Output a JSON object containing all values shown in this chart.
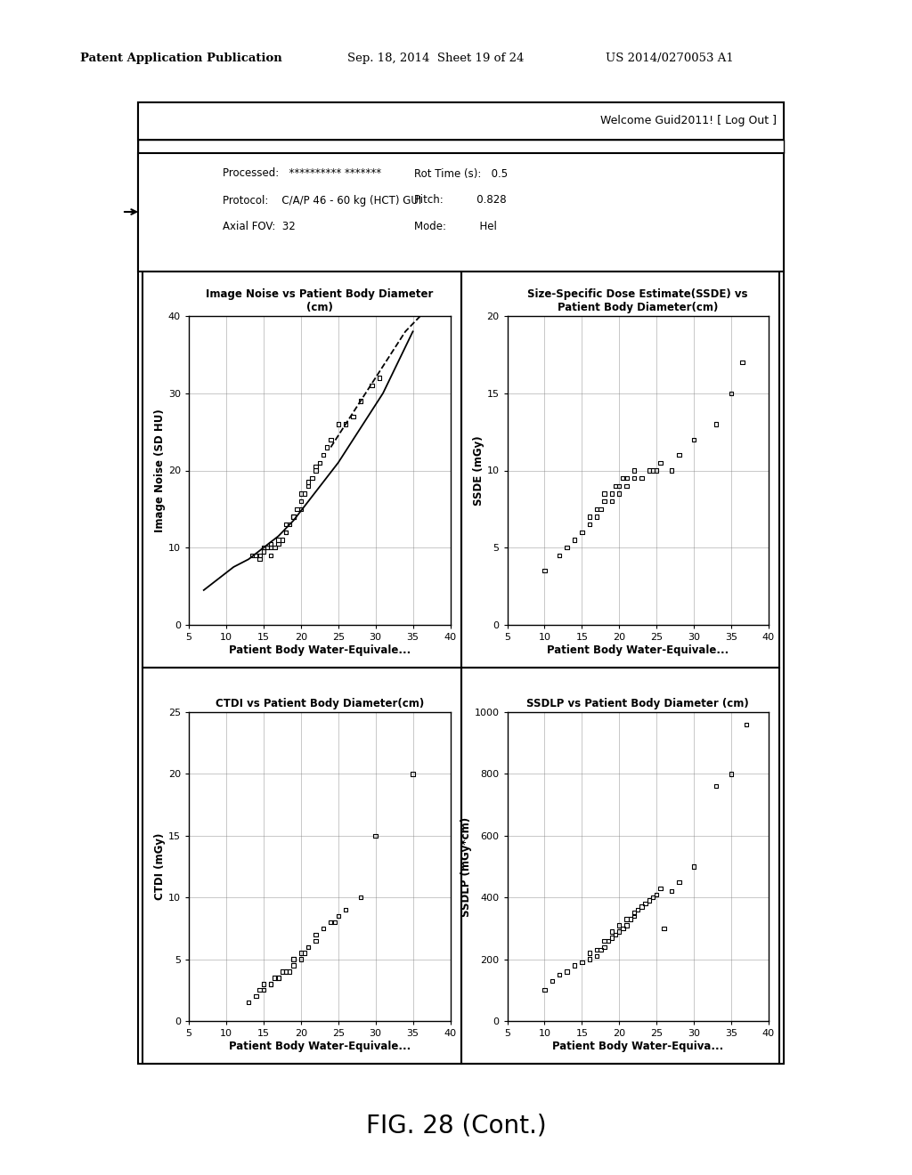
{
  "page_header_left": "Patent Application Publication",
  "page_header_mid": "Sep. 18, 2014  Sheet 19 of 24",
  "page_header_right": "US 2014/0270053 A1",
  "welcome_text": "Welcome ​Guid2011! [ Log Out ]",
  "info_lines": [
    [
      "Processed:   ********** *******",
      "Rot Time (s):   0.5"
    ],
    [
      "Protocol:    C/A/P 46 - 60 kg (HCT) GUI",
      "Pitch:          0.828"
    ],
    [
      "Axial FOV:  32",
      "Mode:          Hel"
    ]
  ],
  "figure_caption": "FIG. 28 (Cont.)",
  "plots": [
    {
      "title": "Image Noise vs Patient Body Diameter\n(cm)",
      "xlabel": "Patient Body Water-Equivale...",
      "ylabel": "Image Noise (SD HU)",
      "xlim": [
        5,
        40
      ],
      "ylim": [
        0,
        40
      ],
      "xticks": [
        5,
        10,
        15,
        20,
        25,
        30,
        35,
        40
      ],
      "yticks": [
        0,
        10,
        20,
        30,
        40
      ],
      "scatter_x": [
        13.5,
        14,
        14.5,
        14.5,
        15,
        15,
        15.5,
        16,
        16,
        16,
        16.5,
        17,
        17,
        17.5,
        18,
        18,
        18,
        18.5,
        19,
        19,
        19,
        19.5,
        20,
        20,
        20,
        20.5,
        21,
        21,
        21.5,
        22,
        22,
        22.5,
        23,
        23.5,
        24,
        25,
        26,
        27,
        28,
        29.5,
        30.5
      ],
      "scatter_y": [
        9,
        9,
        8.5,
        9,
        9.5,
        10,
        10,
        9,
        10,
        10.5,
        10,
        11,
        10.5,
        11,
        12,
        12,
        13,
        13,
        14,
        14,
        14,
        15,
        15,
        16,
        17,
        17,
        18,
        18.5,
        19,
        20,
        20.5,
        21,
        22,
        23,
        24,
        26,
        26,
        27,
        29,
        31,
        32
      ],
      "curve_x": [
        7,
        9,
        11,
        13,
        15,
        17,
        19,
        21,
        23,
        25,
        27,
        29,
        31,
        33,
        35
      ],
      "curve_y": [
        4.5,
        6,
        7.5,
        8.5,
        10,
        11.5,
        13.5,
        16,
        18.5,
        21,
        24,
        27,
        30,
        34,
        38
      ],
      "dashed_x": [
        24,
        26,
        28,
        30,
        32,
        34,
        36,
        38
      ],
      "dashed_y": [
        23,
        26,
        29,
        32,
        35,
        38,
        40,
        42
      ]
    },
    {
      "title": "Size-Specific Dose Estimate(SSDE) vs\nPatient Body Diameter(cm)",
      "xlabel": "Patient Body Water-Equivale...",
      "ylabel": "SSDE (mGy)",
      "xlim": [
        5,
        40
      ],
      "ylim": [
        0,
        20
      ],
      "xticks": [
        5,
        10,
        15,
        20,
        25,
        30,
        35,
        40
      ],
      "yticks": [
        0,
        5,
        10,
        15,
        20
      ],
      "scatter_x": [
        10,
        12,
        13,
        14,
        15,
        16,
        16,
        17,
        17,
        17.5,
        18,
        18,
        19,
        19,
        19.5,
        20,
        20,
        20.5,
        21,
        21,
        22,
        22,
        23,
        24,
        24.5,
        25,
        25.5,
        27,
        28,
        30,
        33,
        35,
        36.5
      ],
      "scatter_y": [
        3.5,
        4.5,
        5,
        5.5,
        6,
        6.5,
        7,
        7,
        7.5,
        7.5,
        8,
        8.5,
        8,
        8.5,
        9,
        8.5,
        9,
        9.5,
        9,
        9.5,
        9.5,
        10,
        9.5,
        10,
        10,
        10,
        10.5,
        10,
        11,
        12,
        13,
        15,
        17
      ]
    },
    {
      "title": "CTDI vs Patient Body Diameter(cm)",
      "xlabel": "Patient Body Water-Equivale...",
      "ylabel": "CTDI (mGy)",
      "xlim": [
        5,
        40
      ],
      "ylim": [
        0,
        25
      ],
      "xticks": [
        5,
        10,
        15,
        20,
        25,
        30,
        35,
        40
      ],
      "yticks": [
        0,
        5,
        10,
        15,
        20,
        25
      ],
      "scatter_x": [
        13,
        14,
        14.5,
        15,
        15,
        16,
        16,
        16.5,
        17,
        17,
        17.5,
        18,
        18,
        18.5,
        19,
        19,
        19,
        20,
        20,
        20.5,
        21,
        21,
        22,
        22,
        23,
        24,
        24.5,
        25,
        26,
        28,
        30,
        35
      ],
      "scatter_y": [
        1.5,
        2,
        2.5,
        2.5,
        3,
        3,
        3,
        3.5,
        3.5,
        3.5,
        4,
        4,
        4,
        4,
        4.5,
        5,
        5,
        5,
        5.5,
        5.5,
        6,
        6,
        6.5,
        7,
        7.5,
        8,
        8,
        8.5,
        9,
        10,
        15,
        20
      ]
    },
    {
      "title": "SSDLP vs Patient Body Diameter (cm)",
      "xlabel": "Patient Body Water-Equiva...",
      "ylabel": "SSDLP (mGy*cm)",
      "xlim": [
        5,
        40
      ],
      "ylim": [
        0,
        1000
      ],
      "xticks": [
        5,
        10,
        15,
        20,
        25,
        30,
        35,
        40
      ],
      "yticks": [
        0,
        200,
        400,
        600,
        800,
        1000
      ],
      "scatter_x": [
        10,
        11,
        12,
        13,
        14,
        15,
        16,
        16,
        17,
        17,
        17.5,
        18,
        18,
        18.5,
        19,
        19,
        19.5,
        20,
        20,
        20.5,
        21,
        21,
        21.5,
        22,
        22,
        22.5,
        23,
        23.5,
        24,
        24.5,
        25,
        25.5,
        26,
        27,
        28,
        30,
        33,
        35,
        37
      ],
      "scatter_y": [
        100,
        130,
        150,
        160,
        180,
        190,
        200,
        220,
        210,
        230,
        230,
        240,
        260,
        260,
        270,
        290,
        280,
        290,
        310,
        300,
        310,
        330,
        330,
        340,
        350,
        360,
        370,
        380,
        390,
        400,
        410,
        430,
        300,
        420,
        450,
        500,
        760,
        800,
        960
      ]
    }
  ],
  "bg_color": "#ffffff"
}
